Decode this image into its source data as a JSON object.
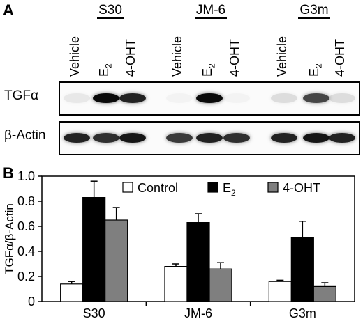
{
  "panel_a": {
    "letter": "A",
    "cell_lines": [
      "S30",
      "JM-6",
      "G3m"
    ],
    "lanes": [
      {
        "main": "Vehicle",
        "sub": ""
      },
      {
        "main": "E",
        "sub": "2"
      },
      {
        "main": "4-OHT",
        "sub": ""
      },
      {
        "main": "Vehicle",
        "sub": ""
      },
      {
        "main": "E",
        "sub": "2"
      },
      {
        "main": "4-OHT",
        "sub": ""
      },
      {
        "main": "Vehicle",
        "sub": ""
      },
      {
        "main": "E",
        "sub": "2"
      },
      {
        "main": "4-OHT",
        "sub": ""
      }
    ],
    "rows": [
      "TGFα",
      "β-Actin"
    ],
    "band_intensity": {
      "tgf": [
        0.08,
        1.0,
        0.9,
        0.03,
        1.0,
        0.03,
        0.12,
        0.75,
        0.12
      ],
      "actin": [
        0.9,
        0.85,
        0.95,
        0.8,
        0.9,
        0.85,
        0.9,
        0.95,
        0.9
      ]
    }
  },
  "chart_data": {
    "type": "bar",
    "panel_letter": "B",
    "categories": [
      "S30",
      "JM-6",
      "G3m"
    ],
    "series": [
      {
        "name": "Control",
        "values": [
          0.14,
          0.28,
          0.16
        ],
        "errors": [
          0.02,
          0.02,
          0.01
        ],
        "color": "#ffffff"
      },
      {
        "name": "E",
        "name_sub": "2",
        "values": [
          0.83,
          0.63,
          0.51
        ],
        "errors": [
          0.13,
          0.07,
          0.13
        ],
        "color": "#000000"
      },
      {
        "name": "4-OHT",
        "values": [
          0.65,
          0.26,
          0.12
        ],
        "errors": [
          0.1,
          0.05,
          0.03
        ],
        "color": "#7f7f7f"
      }
    ],
    "ylabel": "TGFα/β-Actin",
    "ylim": [
      0,
      1.0
    ],
    "yticks": [
      "0",
      "0.2",
      "0.4",
      "0.6",
      "0.8",
      "1.0"
    ],
    "legend_position": "top"
  }
}
